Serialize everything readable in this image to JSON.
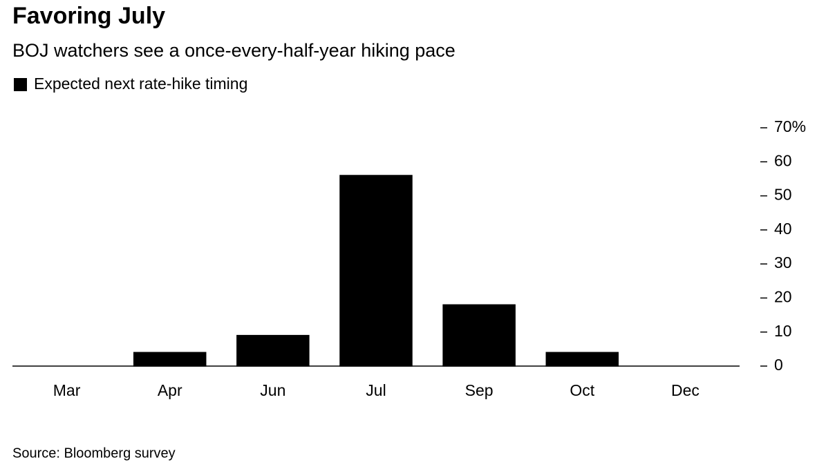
{
  "chart_data": {
    "type": "bar",
    "title": "Favoring July",
    "subtitle": "BOJ watchers see a once-every-half-year hiking pace",
    "source": "Source: Bloomberg survey",
    "categories": [
      "Mar",
      "Apr",
      "Jun",
      "Jul",
      "Sep",
      "Oct",
      "Dec"
    ],
    "series": [
      {
        "name": "Expected next rate-hike timing",
        "color": "#000000",
        "values": [
          0,
          4,
          9,
          56,
          18,
          4,
          0
        ]
      }
    ],
    "ylim": [
      0,
      70
    ],
    "yticks": [
      0,
      10,
      20,
      30,
      40,
      50,
      60,
      {
        "value": 70,
        "label": "70%"
      }
    ],
    "grid": false
  }
}
